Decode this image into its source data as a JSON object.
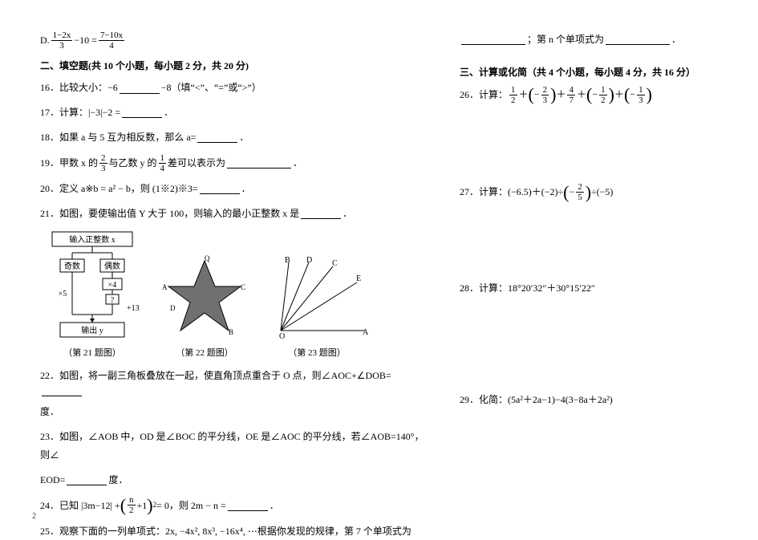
{
  "left": {
    "optD_pre": "D. ",
    "optD_frac1_num": "1−2x",
    "optD_frac1_den": "3",
    "optD_mid": " −10 = ",
    "optD_frac2_num": "7−10x",
    "optD_frac2_den": "4",
    "section2": "二、填空题(共 10 个小题，每小题 2 分，共 20 分)",
    "q16": "16．比较大小：−6",
    "q16b": "−8（填“<”、“=”或“>”）",
    "q17": "17．计算：|−3|−2 =",
    "q17b": "．",
    "q18": "18．如果 a 与 5 互为相反数，那么 a=",
    "q18b": "．",
    "q19a": "19．甲数 x 的",
    "q19_f1n": "2",
    "q19_f1d": "3",
    "q19b": "与乙数 y 的",
    "q19_f2n": "1",
    "q19_f2d": "4",
    "q19c": "差可以表示为",
    "q19d": "．",
    "q20": "20．定义 a※b = a² − b，则 (1※2)※3=",
    "q20b": "．",
    "q21": "21．如图，要使输出值 Y 大于 100，则输入的最小正整数 x 是",
    "q21b": "．",
    "flow_input": "输入正整数 x",
    "flow_odd": "奇数",
    "flow_even": "偶数",
    "flow_x4": "×4",
    "flow_x5": "×5",
    "flow_q": "?",
    "flow_p13": "+13",
    "flow_out": "输出 y",
    "cap21": "（第 21 题图）",
    "cap22": "（第 22 题图）",
    "cap23": "（第 23 题图）",
    "q22a": "22．如图，将一副三角板叠放在一起，使直角顶点重合于 O 点，则∠AOC+∠DOB=",
    "q22b": "度．",
    "q23a": "23．如图，∠AOB 中，OD 是∠BOC 的平分线，OE 是∠AOC 的平分线，若∠AOB=140°，则∠",
    "q23b": "EOD=",
    "q23c": "度．",
    "q24a": "24．已知 |3m−12| +",
    "q24_pn": "n",
    "q24_pd": "2",
    "q24_plus": "+1",
    "q24_exp": "2",
    "q24b": "= 0，则 2m − n =",
    "q24c": "．",
    "q25a": "25．观察下面的一列单项式：2x, −4x², 8x³, −16x⁴, ⋯根据你发现的规律，第 7 个单项式为"
  },
  "right": {
    "r0a": "",
    "r0b": "；第 n 个单项式为",
    "r0c": "．",
    "section3": "三、计算或化简（共 4 个小题，每小题 4 分，共 16 分）",
    "q26a": "26．计算：",
    "q26_ops": [
      {
        "n": "1",
        "d": "2",
        "sign": ""
      },
      {
        "n": "2",
        "d": "3",
        "sign": "−",
        "par": true
      },
      {
        "n": "4",
        "d": "7",
        "sign": ""
      },
      {
        "n": "1",
        "d": "2",
        "sign": "−",
        "par": true
      },
      {
        "n": "1",
        "d": "3",
        "sign": "−",
        "par": true
      }
    ],
    "q27a": "27．计算：(−6.5)＋(−2)÷",
    "q27_fn": "2",
    "q27_fd": "5",
    "q27_sign": "−",
    "q27b": "÷(−5)",
    "q28": "28．计算：18°20′32″＋30°15′22″",
    "q29": "29．化简：(5a²＋2a−1)−4(3−8a＋2a²)"
  },
  "style": {
    "text_color": "#000000",
    "bg_color": "#ffffff",
    "font_size_pt": 12,
    "caption_size_pt": 11,
    "flow_box_fill": "#ffffff",
    "flow_box_stroke": "#000000",
    "star_fill": "#555555",
    "line_stroke": "#000000"
  },
  "page_num": "2"
}
